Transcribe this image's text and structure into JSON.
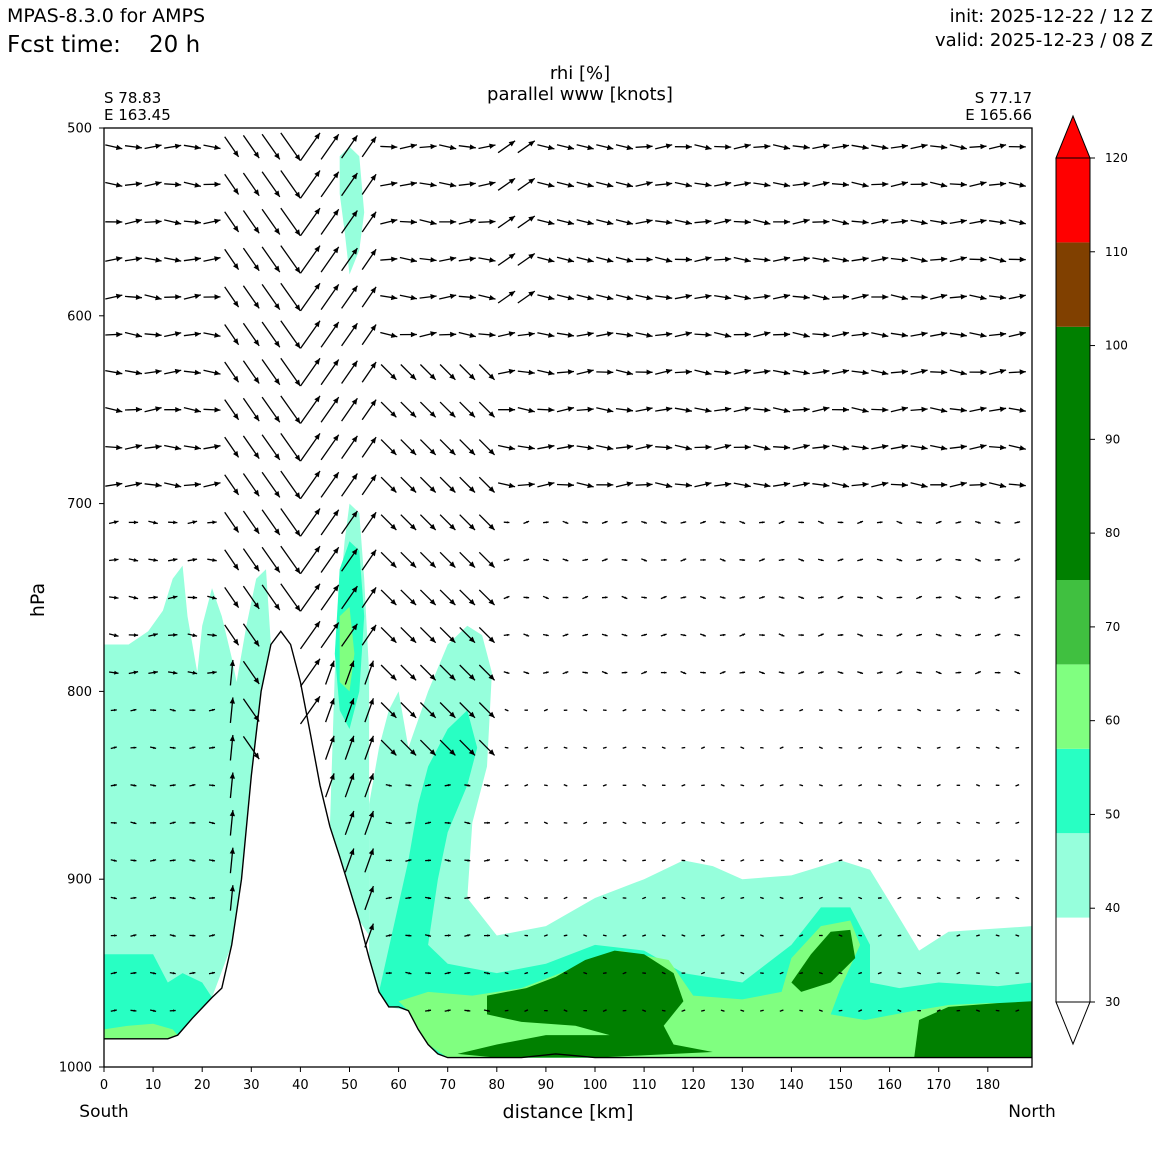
{
  "header": {
    "model": "MPAS-8.3.0 for AMPS",
    "fcst_label": "Fcst time:",
    "fcst_value": "20 h",
    "init": "init: 2025-12-22 / 12 Z",
    "valid": "valid: 2025-12-23 / 08 Z"
  },
  "endpoints": {
    "left_lat": "S 78.83",
    "left_lon": "E 163.45",
    "right_lat": "S 77.17",
    "right_lon": "E 165.66",
    "left_dir": "South",
    "right_dir": "North"
  },
  "chart_data": {
    "type": "heatmap",
    "title": "rhi [%]",
    "subtitle": "parallel www [knots]",
    "xlabel": "distance [km]",
    "ylabel": "hPa",
    "xlim": [
      0,
      189
    ],
    "ylim": [
      1000,
      500
    ],
    "xticks": [
      0,
      10,
      20,
      30,
      40,
      50,
      60,
      70,
      80,
      90,
      100,
      110,
      120,
      130,
      140,
      150,
      160,
      170,
      180
    ],
    "yticks": [
      500,
      600,
      700,
      800,
      900,
      1000
    ],
    "colorbar": {
      "levels": [
        30,
        40,
        50,
        60,
        70,
        80,
        90,
        100,
        110,
        120
      ],
      "bands": [
        {
          "from": 30,
          "to": 39,
          "color": "#ffffff"
        },
        {
          "from": 39,
          "to": 48,
          "color": "#96ffdc"
        },
        {
          "from": 48,
          "to": 57,
          "color": "#28ffc3"
        },
        {
          "from": 57,
          "to": 66,
          "color": "#80ff80"
        },
        {
          "from": 66,
          "to": 75,
          "color": "#40c040"
        },
        {
          "from": 75,
          "to": 102,
          "color": "#008000"
        },
        {
          "from": 102,
          "to": 111,
          "color": "#804000"
        },
        {
          "from": 111,
          "to": 120,
          "color": "#ff0000"
        }
      ]
    },
    "terrain": [
      [
        0,
        985
      ],
      [
        13,
        985
      ],
      [
        15,
        983
      ],
      [
        18,
        974
      ],
      [
        22,
        963
      ],
      [
        24,
        958
      ],
      [
        26,
        935
      ],
      [
        28,
        900
      ],
      [
        30,
        845
      ],
      [
        32,
        800
      ],
      [
        34,
        775
      ],
      [
        36,
        768
      ],
      [
        38,
        775
      ],
      [
        40,
        795
      ],
      [
        42,
        822
      ],
      [
        44,
        850
      ],
      [
        46,
        872
      ],
      [
        48,
        888
      ],
      [
        50,
        905
      ],
      [
        52,
        922
      ],
      [
        54,
        942
      ],
      [
        56,
        960
      ],
      [
        58,
        968
      ],
      [
        60,
        968
      ],
      [
        62,
        970
      ],
      [
        64,
        980
      ],
      [
        66,
        988
      ],
      [
        68,
        993
      ],
      [
        70,
        995
      ],
      [
        85,
        995
      ],
      [
        92,
        993
      ],
      [
        96,
        994
      ],
      [
        100,
        995
      ],
      [
        189,
        995
      ]
    ],
    "rh_regions": [
      {
        "level": 40,
        "points": [
          [
            0,
            775
          ],
          [
            5,
            775
          ],
          [
            9,
            768
          ],
          [
            12,
            757
          ],
          [
            14,
            740
          ],
          [
            16,
            733
          ],
          [
            17,
            760
          ],
          [
            19,
            790
          ],
          [
            20,
            765
          ],
          [
            22,
            745
          ],
          [
            24,
            760
          ],
          [
            26,
            782
          ],
          [
            27,
            795
          ],
          [
            29,
            765
          ],
          [
            31,
            740
          ],
          [
            33,
            735
          ],
          [
            34,
            775
          ],
          [
            32,
            800
          ],
          [
            30,
            845
          ],
          [
            28,
            900
          ],
          [
            26,
            935
          ],
          [
            22,
            963
          ],
          [
            18,
            974
          ],
          [
            15,
            983
          ],
          [
            13,
            985
          ],
          [
            0,
            985
          ]
        ]
      },
      {
        "level": 40,
        "points": [
          [
            48,
            515
          ],
          [
            50,
            510
          ],
          [
            52,
            515
          ],
          [
            53,
            545
          ],
          [
            52,
            565
          ],
          [
            50,
            578
          ],
          [
            49,
            555
          ],
          [
            48,
            535
          ]
        ]
      },
      {
        "level": 40,
        "points": [
          [
            47,
            790
          ],
          [
            48,
            750
          ],
          [
            49,
            720
          ],
          [
            50,
            700
          ],
          [
            52,
            705
          ],
          [
            53,
            740
          ],
          [
            54,
            790
          ],
          [
            54,
            870
          ],
          [
            54,
            930
          ],
          [
            52,
            922
          ],
          [
            50,
            905
          ],
          [
            48,
            888
          ],
          [
            46,
            872
          ]
        ]
      },
      {
        "level": 40,
        "points": [
          [
            54,
            860
          ],
          [
            56,
            830
          ],
          [
            58,
            810
          ],
          [
            60,
            800
          ],
          [
            62,
            830
          ],
          [
            66,
            800
          ],
          [
            70,
            775
          ],
          [
            74,
            765
          ],
          [
            77,
            770
          ],
          [
            79,
            790
          ],
          [
            78,
            840
          ],
          [
            75,
            870
          ],
          [
            74,
            910
          ],
          [
            80,
            930
          ],
          [
            90,
            925
          ],
          [
            100,
            910
          ],
          [
            110,
            900
          ],
          [
            118,
            890
          ],
          [
            124,
            893
          ],
          [
            130,
            900
          ],
          [
            140,
            898
          ],
          [
            150,
            890
          ],
          [
            156,
            895
          ],
          [
            160,
            912
          ],
          [
            166,
            938
          ],
          [
            172,
            928
          ],
          [
            189,
            925
          ],
          [
            189,
            995
          ],
          [
            70,
            995
          ],
          [
            68,
            993
          ],
          [
            66,
            988
          ],
          [
            64,
            980
          ],
          [
            62,
            970
          ],
          [
            58,
            968
          ],
          [
            56,
            960
          ],
          [
            54,
            942
          ]
        ]
      },
      {
        "level": 50,
        "points": [
          [
            0,
            940
          ],
          [
            10,
            940
          ],
          [
            13,
            955
          ],
          [
            16,
            950
          ],
          [
            20,
            955
          ],
          [
            22,
            963
          ],
          [
            18,
            974
          ],
          [
            15,
            983
          ],
          [
            13,
            985
          ],
          [
            0,
            985
          ]
        ]
      },
      {
        "level": 50,
        "points": [
          [
            48,
            735
          ],
          [
            50,
            720
          ],
          [
            52,
            725
          ],
          [
            53,
            760
          ],
          [
            52,
            800
          ],
          [
            50,
            820
          ],
          [
            48,
            810
          ],
          [
            47,
            780
          ]
        ]
      },
      {
        "level": 50,
        "points": [
          [
            62,
            890
          ],
          [
            64,
            860
          ],
          [
            66,
            840
          ],
          [
            70,
            820
          ],
          [
            74,
            810
          ],
          [
            76,
            830
          ],
          [
            74,
            850
          ],
          [
            70,
            875
          ],
          [
            68,
            900
          ],
          [
            66,
            935
          ],
          [
            70,
            945
          ],
          [
            80,
            950
          ],
          [
            90,
            945
          ],
          [
            100,
            935
          ],
          [
            110,
            938
          ],
          [
            118,
            950
          ],
          [
            130,
            955
          ],
          [
            140,
            935
          ],
          [
            146,
            915
          ],
          [
            152,
            915
          ],
          [
            156,
            935
          ],
          [
            156,
            955
          ],
          [
            162,
            958
          ],
          [
            170,
            955
          ],
          [
            182,
            957
          ],
          [
            189,
            955
          ],
          [
            189,
            995
          ],
          [
            70,
            995
          ],
          [
            68,
            993
          ],
          [
            66,
            988
          ],
          [
            64,
            980
          ],
          [
            62,
            970
          ],
          [
            60,
            968
          ],
          [
            58,
            968
          ],
          [
            56,
            960
          ]
        ]
      },
      {
        "level": 60,
        "points": [
          [
            0,
            980
          ],
          [
            5,
            978
          ],
          [
            10,
            977
          ],
          [
            14,
            980
          ],
          [
            15,
            983
          ],
          [
            13,
            985
          ],
          [
            0,
            985
          ]
        ]
      },
      {
        "level": 60,
        "points": [
          [
            48,
            760
          ],
          [
            50,
            755
          ],
          [
            51,
            780
          ],
          [
            50,
            800
          ],
          [
            48,
            795
          ]
        ]
      },
      {
        "level": 60,
        "points": [
          [
            60,
            965
          ],
          [
            66,
            960
          ],
          [
            75,
            962
          ],
          [
            85,
            958
          ],
          [
            95,
            948
          ],
          [
            105,
            938
          ],
          [
            115,
            943
          ],
          [
            120,
            962
          ],
          [
            130,
            964
          ],
          [
            138,
            960
          ],
          [
            140,
            942
          ],
          [
            146,
            925
          ],
          [
            152,
            922
          ],
          [
            154,
            935
          ],
          [
            150,
            958
          ],
          [
            148,
            972
          ],
          [
            155,
            975
          ],
          [
            165,
            970
          ],
          [
            172,
            967
          ],
          [
            180,
            966
          ],
          [
            189,
            966
          ],
          [
            189,
            995
          ],
          [
            70,
            995
          ],
          [
            66,
            988
          ],
          [
            64,
            980
          ],
          [
            62,
            970
          ]
        ]
      },
      {
        "level": 80,
        "points": [
          [
            78,
            962
          ],
          [
            86,
            958
          ],
          [
            92,
            952
          ],
          [
            98,
            943
          ],
          [
            104,
            938
          ],
          [
            110,
            940
          ],
          [
            116,
            950
          ],
          [
            118,
            965
          ],
          [
            114,
            978
          ],
          [
            116,
            988
          ],
          [
            124,
            992
          ],
          [
            116,
            993
          ],
          [
            100,
            995
          ],
          [
            80,
            995
          ],
          [
            72,
            993
          ],
          [
            80,
            988
          ],
          [
            90,
            983
          ],
          [
            98,
            983
          ],
          [
            103,
            983
          ],
          [
            96,
            978
          ],
          [
            85,
            976
          ],
          [
            78,
            972
          ]
        ]
      },
      {
        "level": 80,
        "points": [
          [
            140,
            955
          ],
          [
            144,
            940
          ],
          [
            148,
            928
          ],
          [
            152,
            927
          ],
          [
            153,
            942
          ],
          [
            148,
            955
          ],
          [
            142,
            960
          ]
        ]
      },
      {
        "level": 80,
        "points": [
          [
            166,
            975
          ],
          [
            172,
            968
          ],
          [
            182,
            966
          ],
          [
            189,
            965
          ],
          [
            189,
            995
          ],
          [
            165,
            995
          ]
        ]
      }
    ],
    "wind_rows_hpa": [
      510,
      530,
      550,
      570,
      590,
      610,
      630,
      650,
      670,
      690,
      710,
      730,
      750,
      770,
      790,
      810,
      830,
      850,
      870,
      890,
      910,
      930,
      950,
      970,
      990
    ],
    "wind_x_step_km": 4,
    "wind_note": "parallel wind vectors (u along section, w vertical) drawn as arrows"
  }
}
